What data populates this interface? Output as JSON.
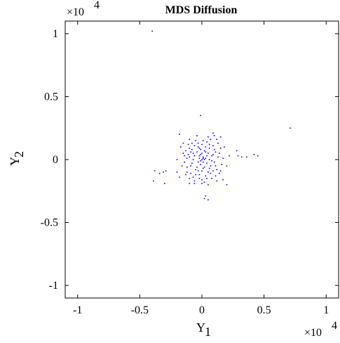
{
  "chart_data": {
    "type": "scatter",
    "title": "MDS Diffusion",
    "xlabel": {
      "base": "Y",
      "sub": "1"
    },
    "ylabel": {
      "base": "Y",
      "sub": "2"
    },
    "multiplier": {
      "prefix": "×10",
      "exp": "4"
    },
    "xlim": [
      -1.1,
      1.1
    ],
    "ylim": [
      -1.1,
      1.1
    ],
    "xticks": [
      -1,
      -0.5,
      0,
      0.5,
      1
    ],
    "xtick_labels": [
      "-1",
      "-0.5",
      "0",
      "0.5",
      "1"
    ],
    "yticks": [
      -1,
      -0.5,
      0,
      0.5,
      1
    ],
    "ytick_labels": [
      "-1",
      "-0.5",
      "0",
      "0.5",
      "1"
    ],
    "grid": false,
    "marker_color": "#0000ff",
    "points": [
      [
        -0.4,
        1.02
      ],
      [
        0.71,
        0.25
      ],
      [
        -0.01,
        0.35
      ],
      [
        -0.38,
        -0.09
      ],
      [
        -0.39,
        -0.17
      ],
      [
        -0.34,
        -0.11
      ],
      [
        -0.31,
        -0.1
      ],
      [
        -0.29,
        -0.09
      ],
      [
        -0.3,
        -0.19
      ],
      [
        -0.2,
        -0.1
      ],
      [
        0.28,
        0.07
      ],
      [
        0.29,
        0.03
      ],
      [
        0.32,
        0.02
      ],
      [
        0.36,
        0.02
      ],
      [
        0.42,
        0.04
      ],
      [
        0.45,
        0.03
      ],
      [
        0.2,
        -0.2
      ],
      [
        0.17,
        -0.16
      ],
      [
        0.02,
        -0.31
      ],
      [
        0.05,
        -0.32
      ],
      [
        0.03,
        -0.29
      ],
      [
        -0.18,
        0.2
      ],
      [
        -0.1,
        0.16
      ],
      [
        0.09,
        0.21
      ],
      [
        0.1,
        0.19
      ],
      [
        0.15,
        0.18
      ],
      [
        -0.17,
        0.1
      ],
      [
        -0.15,
        0.05
      ],
      [
        -0.14,
        -0.02
      ],
      [
        -0.12,
        -0.1
      ],
      [
        -0.11,
        0.12
      ],
      [
        -0.1,
        0.02
      ],
      [
        -0.09,
        -0.05
      ],
      [
        -0.08,
        0.08
      ],
      [
        -0.07,
        -0.14
      ],
      [
        -0.06,
        0.03
      ],
      [
        -0.05,
        0.15
      ],
      [
        -0.05,
        -0.08
      ],
      [
        -0.04,
        0.06
      ],
      [
        -0.03,
        -0.02
      ],
      [
        -0.03,
        0.1
      ],
      [
        -0.02,
        -0.12
      ],
      [
        -0.02,
        0.01
      ],
      [
        -0.01,
        0.04
      ],
      [
        -0.01,
        -0.04
      ],
      [
        0.0,
        0.0
      ],
      [
        0.0,
        0.12
      ],
      [
        0.0,
        -0.09
      ],
      [
        0.01,
        0.02
      ],
      [
        0.01,
        -0.02
      ],
      [
        0.02,
        0.07
      ],
      [
        0.02,
        -0.06
      ],
      [
        0.03,
        0.01
      ],
      [
        0.03,
        -0.13
      ],
      [
        0.04,
        0.14
      ],
      [
        0.04,
        -0.03
      ],
      [
        0.05,
        0.05
      ],
      [
        0.05,
        -0.1
      ],
      [
        0.06,
        0.0
      ],
      [
        0.06,
        0.09
      ],
      [
        0.07,
        -0.05
      ],
      [
        0.08,
        0.03
      ],
      [
        0.08,
        -0.15
      ],
      [
        0.09,
        0.11
      ],
      [
        0.1,
        -0.02
      ],
      [
        0.11,
        0.06
      ],
      [
        0.12,
        -0.08
      ],
      [
        0.13,
        0.02
      ],
      [
        0.14,
        -0.11
      ],
      [
        0.15,
        0.09
      ],
      [
        0.16,
        -0.04
      ],
      [
        -0.13,
        0.07
      ],
      [
        -0.06,
        -0.17
      ],
      [
        0.07,
        0.16
      ],
      [
        0.11,
        -0.13
      ],
      [
        -0.09,
        -0.11
      ],
      [
        -0.04,
        0.19
      ],
      [
        0.02,
        -0.18
      ],
      [
        -0.15,
        0.13
      ],
      [
        0.13,
        0.13
      ],
      [
        -0.12,
        -0.06
      ],
      [
        -0.02,
        0.09
      ],
      [
        0.01,
        -0.07
      ],
      [
        0.04,
        0.03
      ],
      [
        -0.07,
        0.0
      ],
      [
        0.06,
        -0.07
      ],
      [
        -0.11,
        0.04
      ],
      [
        0.09,
        -0.09
      ],
      [
        -0.03,
        0.13
      ],
      [
        0.03,
        0.1
      ],
      [
        -0.08,
        -0.03
      ],
      [
        0.0,
        0.05
      ],
      [
        -0.01,
        -0.01
      ],
      [
        0.02,
        0.0
      ],
      [
        -0.02,
        0.03
      ],
      [
        0.01,
        0.01
      ],
      [
        -0.16,
        -0.05
      ],
      [
        0.17,
        0.01
      ],
      [
        -0.1,
        -0.15
      ],
      [
        0.05,
        0.18
      ],
      [
        -0.05,
        -0.12
      ],
      [
        0.12,
        0.16
      ],
      [
        -0.13,
        -0.12
      ],
      [
        0.14,
        0.05
      ],
      [
        -0.06,
        0.11
      ],
      [
        0.08,
        -0.01
      ],
      [
        -0.09,
        0.06
      ],
      [
        0.1,
        0.08
      ],
      [
        -0.04,
        -0.06
      ],
      [
        0.03,
        0.06
      ],
      [
        -0.01,
        0.08
      ],
      [
        0.0,
        -0.16
      ],
      [
        -0.08,
        0.13
      ],
      [
        0.07,
        -0.11
      ],
      [
        -0.12,
        0.01
      ],
      [
        0.11,
        -0.05
      ],
      [
        -0.03,
        -0.09
      ],
      [
        0.04,
        -0.15
      ],
      [
        -0.14,
        0.03
      ],
      [
        0.15,
        -0.09
      ],
      [
        -0.07,
        0.05
      ],
      [
        0.06,
        0.12
      ],
      [
        -0.02,
        -0.15
      ],
      [
        0.01,
        0.15
      ],
      [
        -0.1,
        0.09
      ],
      [
        0.09,
        0.04
      ],
      [
        0.2,
        -0.05
      ],
      [
        -0.2,
        0.0
      ],
      [
        0.18,
        0.1
      ],
      [
        -0.18,
        -0.14
      ],
      [
        0.22,
        0.03
      ],
      [
        -0.06,
        -0.19
      ],
      [
        0.0,
        -0.19
      ],
      [
        0.05,
        -0.2
      ],
      [
        -0.1,
        -0.19
      ],
      [
        0.12,
        -0.17
      ]
    ]
  }
}
